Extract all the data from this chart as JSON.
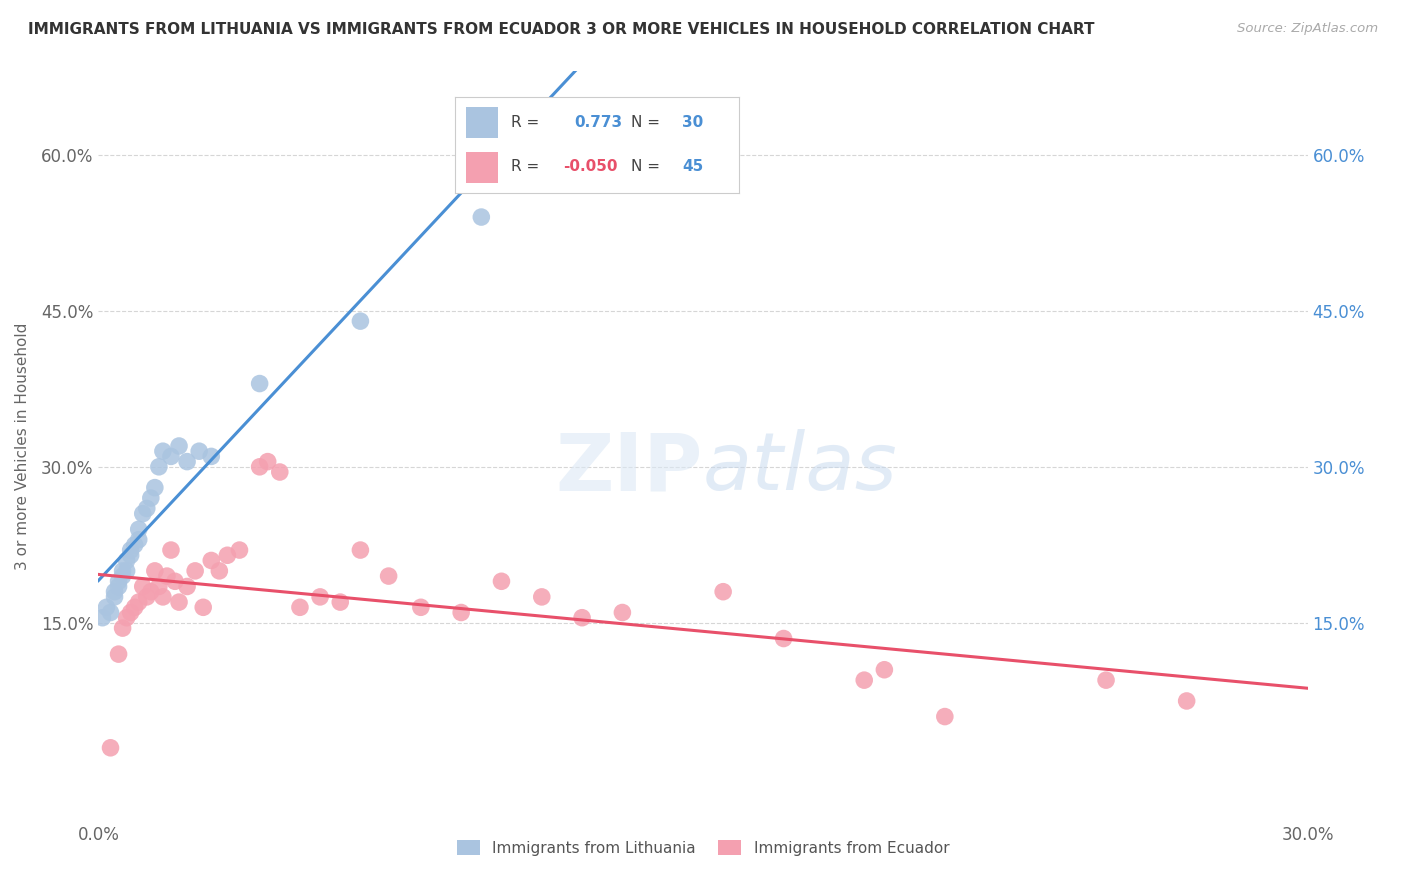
{
  "title": "IMMIGRANTS FROM LITHUANIA VS IMMIGRANTS FROM ECUADOR 3 OR MORE VEHICLES IN HOUSEHOLD CORRELATION CHART",
  "source": "Source: ZipAtlas.com",
  "ylabel": "3 or more Vehicles in Household",
  "xlim": [
    0.0,
    0.3
  ],
  "ylim": [
    -0.04,
    0.68
  ],
  "yticks": [
    0.15,
    0.3,
    0.45,
    0.6
  ],
  "ytick_labels": [
    "15.0%",
    "30.0%",
    "45.0%",
    "60.0%"
  ],
  "xtick_positions": [
    0.0,
    0.3
  ],
  "xtick_labels": [
    "0.0%",
    "30.0%"
  ],
  "lithuania_R": 0.773,
  "lithuania_N": 30,
  "ecuador_R": -0.05,
  "ecuador_N": 45,
  "legend_labels": [
    "Immigrants from Lithuania",
    "Immigrants from Ecuador"
  ],
  "dot_color_lithuania": "#aac4e0",
  "dot_color_ecuador": "#f4a0b0",
  "line_color_lithuania": "#4a8fd4",
  "line_color_ecuador": "#e8506a",
  "background_color": "#ffffff",
  "grid_color": "#cccccc",
  "title_color": "#333333",
  "label_color_blue": "#4a8fd4",
  "label_color_pink": "#e8506a",
  "lithuania_x": [
    0.001,
    0.002,
    0.003,
    0.004,
    0.004,
    0.005,
    0.005,
    0.006,
    0.006,
    0.007,
    0.007,
    0.008,
    0.008,
    0.009,
    0.01,
    0.01,
    0.011,
    0.012,
    0.013,
    0.014,
    0.015,
    0.016,
    0.018,
    0.02,
    0.022,
    0.025,
    0.028,
    0.04,
    0.065,
    0.095
  ],
  "lithuania_y": [
    0.155,
    0.165,
    0.16,
    0.175,
    0.18,
    0.185,
    0.19,
    0.195,
    0.2,
    0.2,
    0.21,
    0.215,
    0.22,
    0.225,
    0.23,
    0.24,
    0.255,
    0.26,
    0.27,
    0.28,
    0.3,
    0.315,
    0.31,
    0.32,
    0.305,
    0.315,
    0.31,
    0.38,
    0.44,
    0.54
  ],
  "ecuador_x": [
    0.003,
    0.005,
    0.006,
    0.007,
    0.008,
    0.009,
    0.01,
    0.011,
    0.012,
    0.013,
    0.014,
    0.015,
    0.016,
    0.017,
    0.018,
    0.019,
    0.02,
    0.022,
    0.024,
    0.026,
    0.028,
    0.03,
    0.032,
    0.035,
    0.04,
    0.042,
    0.045,
    0.05,
    0.055,
    0.06,
    0.065,
    0.072,
    0.08,
    0.09,
    0.1,
    0.11,
    0.12,
    0.13,
    0.155,
    0.17,
    0.19,
    0.195,
    0.21,
    0.25,
    0.27
  ],
  "ecuador_y": [
    0.03,
    0.12,
    0.145,
    0.155,
    0.16,
    0.165,
    0.17,
    0.185,
    0.175,
    0.18,
    0.2,
    0.185,
    0.175,
    0.195,
    0.22,
    0.19,
    0.17,
    0.185,
    0.2,
    0.165,
    0.21,
    0.2,
    0.215,
    0.22,
    0.3,
    0.305,
    0.295,
    0.165,
    0.175,
    0.17,
    0.22,
    0.195,
    0.165,
    0.16,
    0.19,
    0.175,
    0.155,
    0.16,
    0.18,
    0.135,
    0.095,
    0.105,
    0.06,
    0.095,
    0.075
  ]
}
